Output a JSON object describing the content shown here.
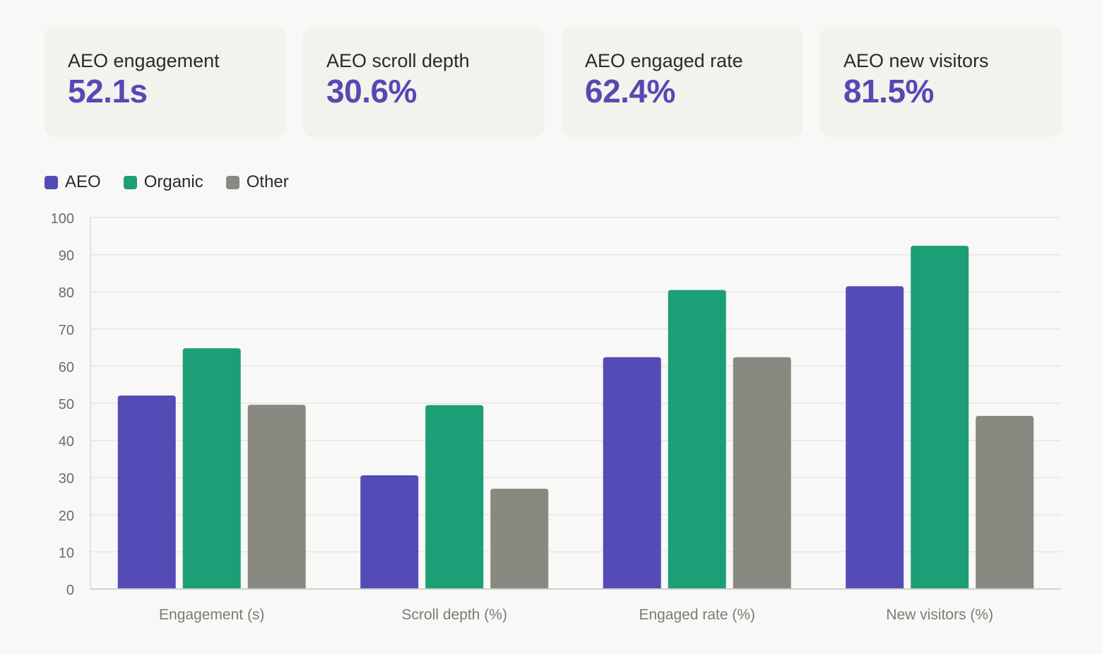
{
  "kpis": [
    {
      "label": "AEO engagement",
      "value": "52.1s"
    },
    {
      "label": "AEO scroll depth",
      "value": "30.6%"
    },
    {
      "label": "AEO engaged rate",
      "value": "62.4%"
    },
    {
      "label": "AEO new visitors",
      "value": "81.5%"
    }
  ],
  "legend": [
    {
      "label": "AEO",
      "color": "#544bb6"
    },
    {
      "label": "Organic",
      "color": "#1c9f77"
    },
    {
      "label": "Other",
      "color": "#8a8981"
    }
  ],
  "chart_data": {
    "type": "bar",
    "categories": [
      "Engagement (s)",
      "Scroll depth (%)",
      "Engaged rate (%)",
      "New visitors (%)"
    ],
    "series": [
      {
        "name": "AEO",
        "color": "#544bb6",
        "values": [
          52.1,
          30.6,
          62.4,
          81.5
        ]
      },
      {
        "name": "Organic",
        "color": "#1c9f77",
        "values": [
          64.8,
          49.5,
          80.5,
          92.4
        ]
      },
      {
        "name": "Other",
        "color": "#8a8981",
        "values": [
          49.6,
          27,
          62.4,
          46.6
        ]
      }
    ],
    "ylim": [
      0,
      100
    ],
    "yticks": [
      0,
      10,
      20,
      30,
      40,
      50,
      60,
      70,
      80,
      90,
      100
    ],
    "grid": true,
    "legend_position": "top-left"
  }
}
